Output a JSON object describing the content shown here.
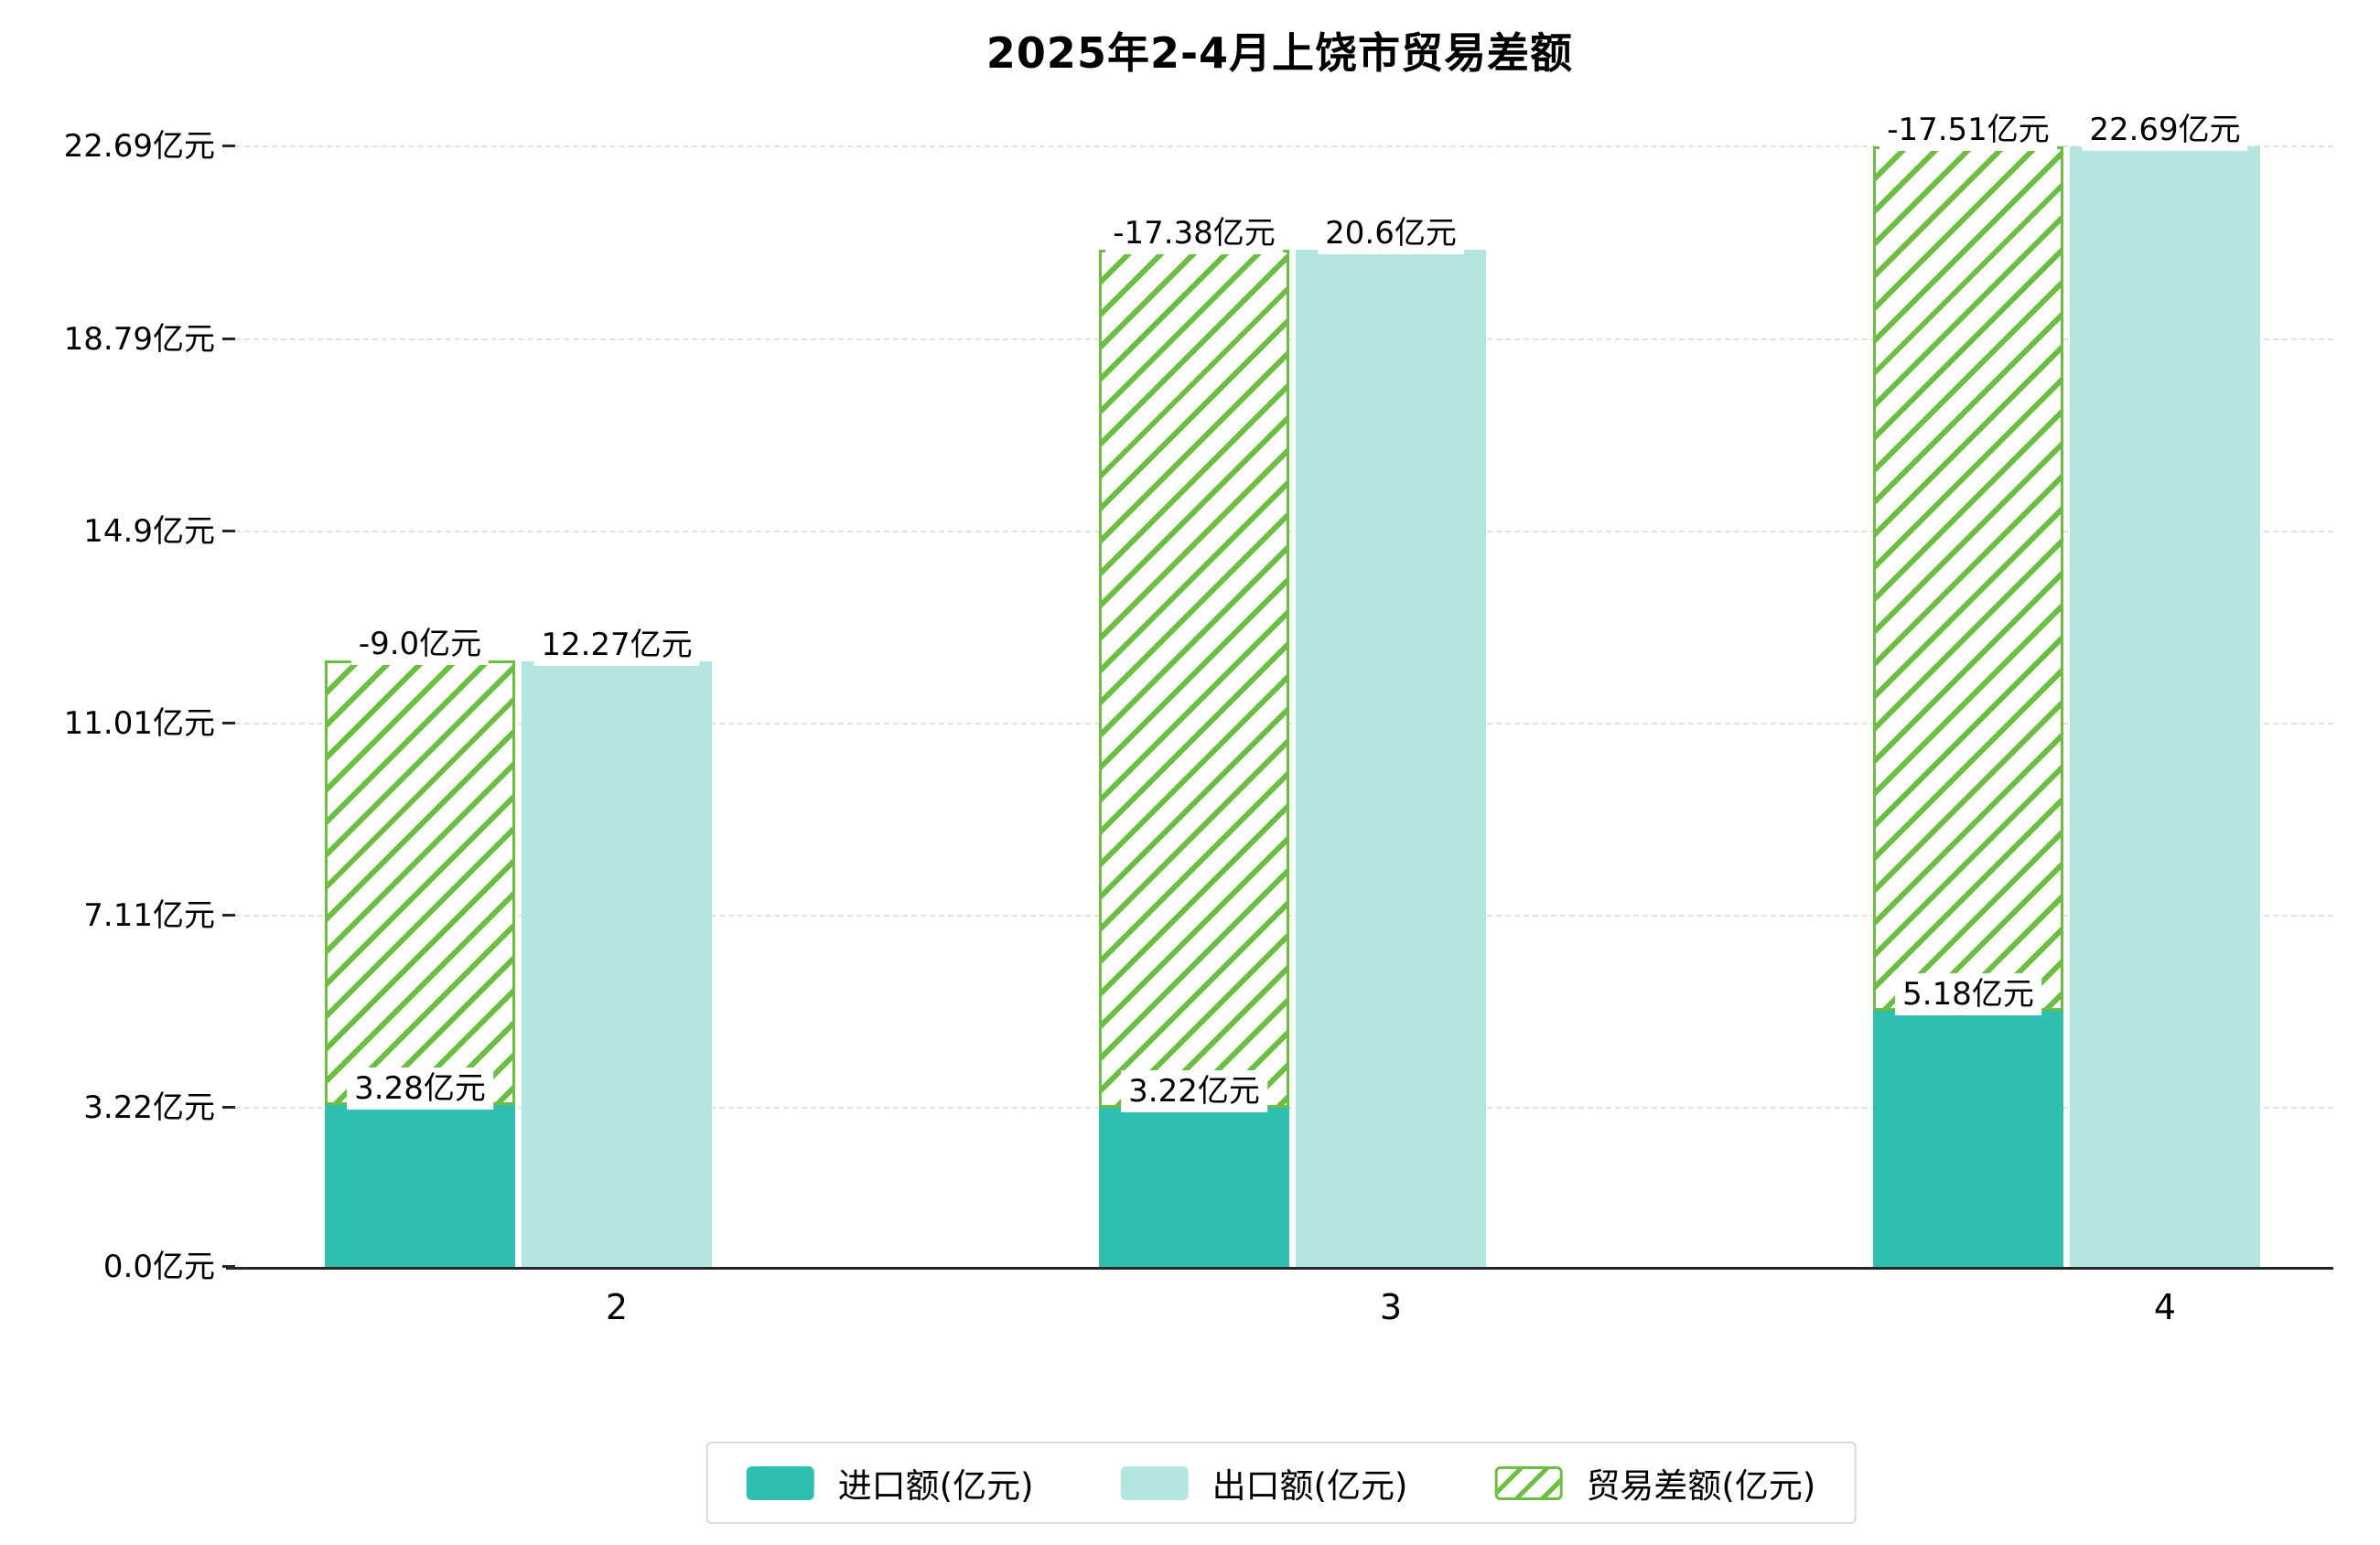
{
  "chart_data": {
    "type": "bar",
    "title": "2025年2-4月上饶市贸易差额",
    "categories": [
      "2",
      "3",
      "4"
    ],
    "y_unit": "亿元",
    "series": [
      {
        "name": "进口额(亿元)",
        "type": "bar",
        "color": "#2ebfae",
        "values": [
          3.28,
          3.22,
          5.18
        ],
        "labels": [
          "3.28亿元",
          "3.22亿元",
          "5.18亿元"
        ]
      },
      {
        "name": "出口额(亿元)",
        "type": "bar",
        "color": "#b3e6e0",
        "values": [
          12.27,
          20.6,
          22.69
        ],
        "labels": [
          "12.27亿元",
          "20.6亿元",
          "22.69亿元"
        ]
      },
      {
        "name": "贸易差额(亿元)",
        "type": "bar",
        "style": "diagonal-hatch",
        "stacked_on_import": true,
        "color": "#6cbe43",
        "values": [
          -9.0,
          -17.38,
          -17.51
        ],
        "labels": [
          "-9.0亿元",
          "-17.38亿元",
          "-17.51亿元"
        ]
      }
    ],
    "yticks": {
      "values": [
        0.0,
        3.22,
        7.11,
        11.01,
        14.9,
        18.79,
        22.69
      ],
      "labels": [
        "0.0亿元",
        "3.22亿元",
        "7.11亿元",
        "11.01亿元",
        "14.9亿元",
        "18.79亿元",
        "22.69亿元"
      ]
    },
    "ylim": [
      0,
      22.69
    ],
    "grid": "dashed-horizontal",
    "legend_position": "bottom-center"
  },
  "colors": {
    "import_bar": "#2ebfae",
    "export_bar": "#b3e6e0",
    "diff_hatch": "#6cbe43",
    "axis": "#262626",
    "gridline": "#e0e0e0",
    "label_background": "#ffffff",
    "legend_border": "#d9d9d9",
    "text": "#000000"
  }
}
